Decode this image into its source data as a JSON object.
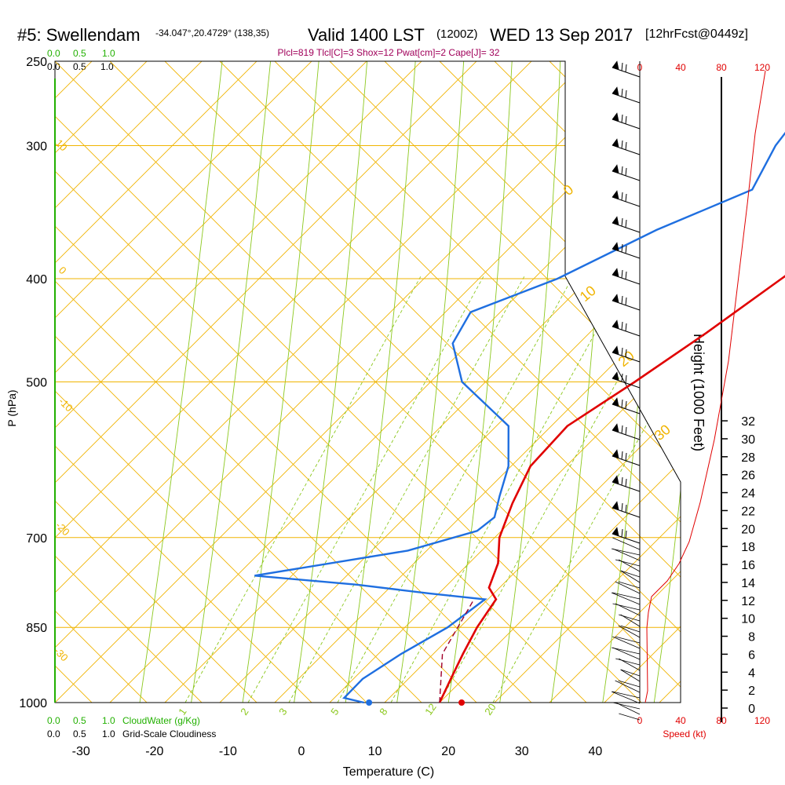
{
  "header": {
    "station": "#5: Swellendam",
    "coords": "-34.047°,20.4729° (138,35)",
    "valid": "Valid 1400 LST",
    "zulu": "(1200Z)",
    "date": "WED 13 Sep 2017",
    "fcst": "[12hrFcst@0449z]"
  },
  "indices": "Plcl=819 Tlcl[C]=3 Shox=12 Pwat[cm]=2 Cape[J]= 32",
  "scales": {
    "cloud_top": [
      "0.0",
      "0.5",
      "1.0"
    ],
    "cloud_top_green": [
      "0.0",
      "0.5",
      "1.0"
    ],
    "cloud_bottom_green": [
      "0.0",
      "0.5",
      "1.0"
    ],
    "cloud_bottom": [
      "0.0",
      "0.5",
      "1.0"
    ],
    "cloudwater_label": "CloudWater (g/Kg)",
    "cloudiness_label": "Grid-Scale Cloudiness",
    "speed_ticks": [
      "0",
      "40",
      "80",
      "120"
    ],
    "speed_label": "Speed (kt)"
  },
  "colors": {
    "temp": "#e00000",
    "dew": "#1f6fe0",
    "isobar": "#f0b400",
    "dry_adiabat": "#f0b400",
    "moist_adiabat": "#8cc81e",
    "mixing": "#8cc81e",
    "cloud": "#22b000",
    "speed": "#e00000",
    "indices": "#a0005a"
  },
  "chart_data": {
    "type": "line",
    "skewt": true,
    "xlabel": "Temperature (C)",
    "ylabel": "P (hPa)",
    "y2label": "Height (1000 Feet)",
    "x_ticks": [
      -30,
      -20,
      -10,
      0,
      10,
      20,
      30,
      40
    ],
    "p_ticks": [
      250,
      300,
      400,
      500,
      700,
      850,
      1000
    ],
    "height_ticks": [
      0,
      2,
      4,
      6,
      8,
      10,
      12,
      14,
      16,
      18,
      20,
      22,
      24,
      26,
      28,
      30,
      32
    ],
    "dry_adiabat_labels": [
      "10",
      "0",
      "-10",
      "-20",
      "-30",
      "0",
      "10",
      "20",
      "30"
    ],
    "mixing_labels": [
      "1",
      "2",
      "3",
      "5",
      "8",
      "12",
      "20"
    ],
    "series": [
      {
        "key": "temperature",
        "points": [
          [
            265,
            -4.5
          ],
          [
            300,
            -5.1
          ],
          [
            340,
            -7
          ],
          [
            380,
            -8.1
          ],
          [
            400,
            -8.5
          ],
          [
            450,
            -9.3
          ],
          [
            500,
            -10.5
          ],
          [
            550,
            -12
          ],
          [
            600,
            -10
          ],
          [
            650,
            -6
          ],
          [
            700,
            -1.8
          ],
          [
            740,
            2.5
          ],
          [
            780,
            5.5
          ],
          [
            800,
            8.5
          ],
          [
            850,
            10.8
          ],
          [
            900,
            13.5
          ],
          [
            950,
            16.2
          ],
          [
            1000,
            18.8
          ]
        ]
      },
      {
        "key": "dewpoint",
        "points": [
          [
            265,
            -36.5
          ],
          [
            300,
            -32.5
          ],
          [
            330,
            -28
          ],
          [
            360,
            -34
          ],
          [
            400,
            -39
          ],
          [
            430,
            -45
          ],
          [
            460,
            -42
          ],
          [
            500,
            -34
          ],
          [
            550,
            -20
          ],
          [
            600,
            -13
          ],
          [
            640,
            -9
          ],
          [
            670,
            -6
          ],
          [
            690,
            -6
          ],
          [
            720,
            -12
          ],
          [
            760,
            -28.5
          ],
          [
            775,
            -13
          ],
          [
            790,
            -1.5
          ],
          [
            800,
            7
          ],
          [
            850,
            6.8
          ],
          [
            900,
            5.1
          ],
          [
            950,
            4.2
          ],
          [
            990,
            5.0
          ],
          [
            1000,
            8.5
          ]
        ]
      },
      {
        "key": "parcel",
        "points": [
          [
            1000,
            18.8
          ],
          [
            900,
            10.7
          ],
          [
            800,
            5.5
          ]
        ]
      }
    ],
    "surface": {
      "temperature": 21.8,
      "dewpoint": 9.2
    },
    "speed_profile": {
      "ylim_kt": [
        0,
        120
      ]
    }
  }
}
